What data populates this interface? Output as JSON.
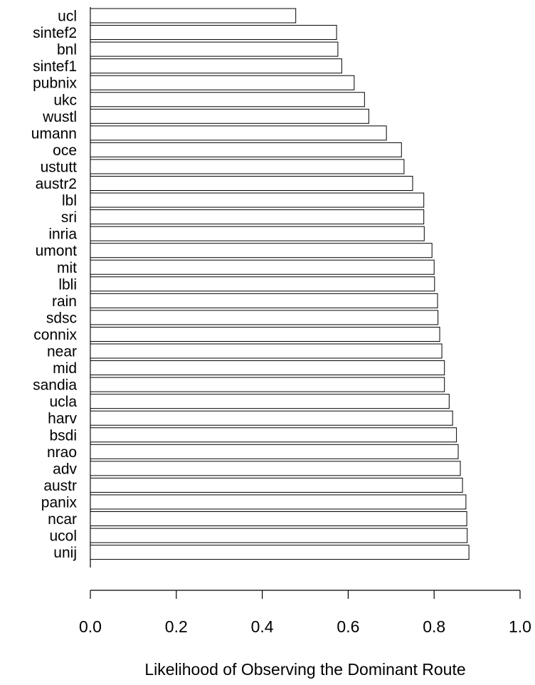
{
  "chart_data": {
    "type": "bar",
    "orientation": "horizontal",
    "categories": [
      "ucl",
      "sintef2",
      "bnl",
      "sintef1",
      "pubnix",
      "ukc",
      "wustl",
      "umann",
      "oce",
      "ustutt",
      "austr2",
      "lbl",
      "sri",
      "inria",
      "umont",
      "mit",
      "lbli",
      "rain",
      "sdsc",
      "connix",
      "near",
      "mid",
      "sandia",
      "ucla",
      "harv",
      "bsdi",
      "nrao",
      "adv",
      "austr",
      "panix",
      "ncar",
      "ucol",
      "unij"
    ],
    "values": [
      0.478,
      0.573,
      0.576,
      0.585,
      0.614,
      0.638,
      0.648,
      0.689,
      0.724,
      0.73,
      0.75,
      0.776,
      0.776,
      0.777,
      0.795,
      0.8,
      0.801,
      0.808,
      0.809,
      0.813,
      0.818,
      0.824,
      0.824,
      0.835,
      0.843,
      0.852,
      0.856,
      0.861,
      0.866,
      0.874,
      0.876,
      0.877,
      0.881
    ],
    "xlim": [
      0,
      1.0
    ],
    "xticks": [
      "0.0",
      "0.2",
      "0.4",
      "0.6",
      "0.8",
      "1.0"
    ],
    "xlabel": "Likelihood of Observing the Dominant Route",
    "ylabel": "",
    "title": "",
    "grid": false,
    "bar_fill": "#ffffff",
    "bar_stroke": "#000000"
  }
}
